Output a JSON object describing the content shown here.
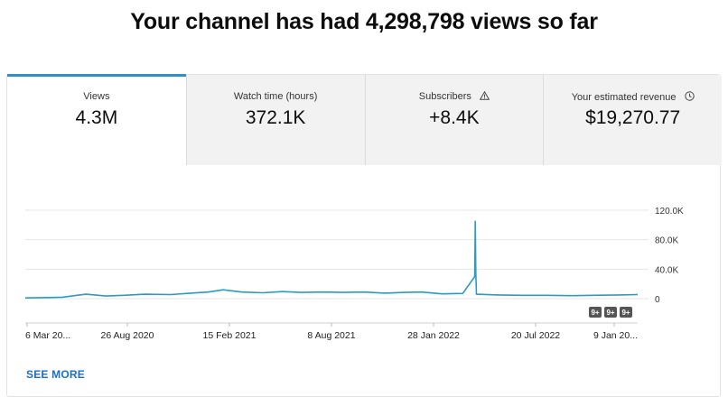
{
  "headline": "Your channel has had 4,298,798 views so far",
  "tabs": [
    {
      "label": "Views",
      "value": "4.3M",
      "active": true
    },
    {
      "label": "Watch time (hours)",
      "value": "372.1K",
      "active": false
    },
    {
      "label": "Subscribers",
      "value": "+8.4K",
      "active": false,
      "icon": "warning-icon"
    },
    {
      "label": "Your estimated revenue",
      "value": "$19,270.77",
      "active": false,
      "icon": "clock-icon"
    }
  ],
  "colors": {
    "accent": "#2f8fcb",
    "line": "#2a9bc5",
    "link": "#1a6fc4"
  },
  "markers": [
    "9+",
    "9+",
    "9+"
  ],
  "see_more": "SEE MORE",
  "chart_data": {
    "type": "line",
    "x_ticks": [
      "6 Mar 20...",
      "26 Aug 2020",
      "15 Feb 2021",
      "8 Aug 2021",
      "28 Jan 2022",
      "20 Jul 2022",
      "9 Jan 20..."
    ],
    "y_ticks": [
      "120.0K",
      "80.0K",
      "40.0K",
      "0"
    ],
    "ylim": [
      0,
      120000
    ],
    "grid": true,
    "series": [
      {
        "x": [
          "2020-03-06",
          "2020-04-15",
          "2020-05-10",
          "2020-06-20",
          "2020-07-25",
          "2020-08-26",
          "2020-10-01",
          "2020-11-15",
          "2020-12-20",
          "2021-01-20",
          "2021-02-15",
          "2021-03-20",
          "2021-04-25",
          "2021-05-30",
          "2021-07-01",
          "2021-08-08",
          "2021-09-15",
          "2021-10-20",
          "2021-11-25",
          "2021-12-30",
          "2022-01-28",
          "2022-03-05",
          "2022-04-10",
          "2022-05-01",
          "2022-05-02",
          "2022-05-03",
          "2022-05-04",
          "2022-06-10",
          "2022-07-20",
          "2022-09-01",
          "2022-10-15",
          "2022-11-25",
          "2023-01-09",
          "2023-02-10"
        ],
        "values": [
          1000,
          1500,
          2000,
          6000,
          3500,
          4500,
          6000,
          5500,
          7500,
          9000,
          12000,
          9000,
          8000,
          9500,
          8500,
          9000,
          8500,
          9000,
          7500,
          8500,
          9000,
          6500,
          7000,
          30000,
          105000,
          35000,
          6000,
          5000,
          4500,
          4500,
          4000,
          4500,
          5000,
          5500
        ]
      }
    ]
  }
}
